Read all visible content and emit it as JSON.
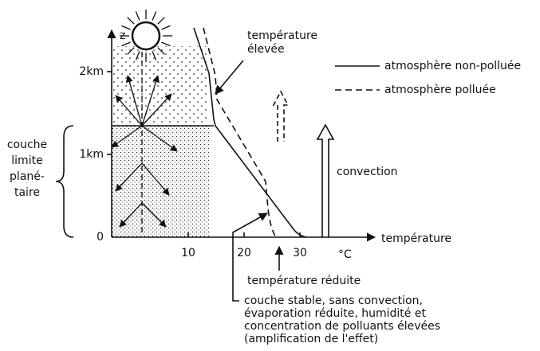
{
  "axes": {
    "y_label": "z",
    "x_label": "température",
    "x_unit": "°C",
    "x_ticks": [
      "10",
      "20",
      "30"
    ],
    "y_ticks": [
      "0",
      "1km",
      "2km"
    ]
  },
  "boundary_layer": {
    "lines": [
      "couche",
      "limite",
      "plané-",
      "taire"
    ]
  },
  "legend": {
    "solid": "atmosphère non-polluée",
    "dashed": "atmosphère polluée"
  },
  "annotations": {
    "high_temp": [
      "température",
      "élevée"
    ],
    "convection": "convection",
    "reduced_temp": "température réduite",
    "stable_layer": [
      "couche stable, sans convection,",
      "évaporation réduite, humidité et",
      "concentration de polluants élevées",
      "(amplification de l'effet)"
    ]
  }
}
